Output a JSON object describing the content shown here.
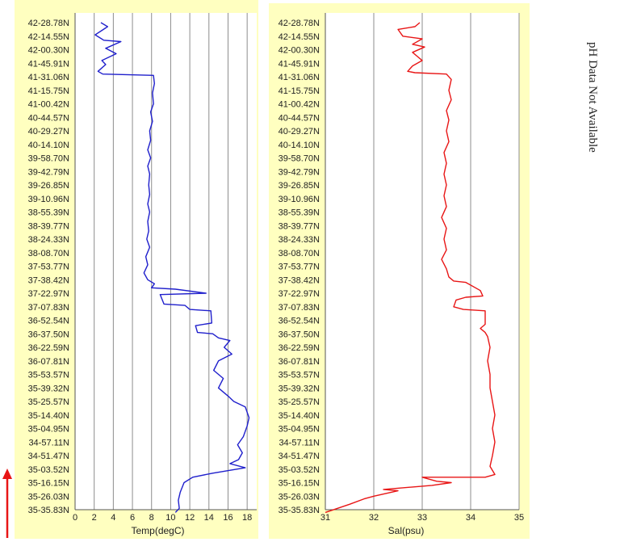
{
  "ph_note": "pH Data Not Available",
  "colors": {
    "panel_bg": "#ffffc0",
    "plot_bg": "#ffffff",
    "grid": "#8c8c8c",
    "temp_line": "#1f1fcc",
    "sal_line": "#e81515",
    "arrow": "#e81515"
  },
  "chart_data": [
    {
      "type": "line",
      "title": "",
      "xlabel": "Temp(degC)",
      "ylabel": "",
      "xlim": [
        0,
        19
      ],
      "xticks": [
        "0",
        "2",
        "4",
        "6",
        "8",
        "10",
        "12",
        "14",
        "16",
        "18"
      ],
      "grid": true,
      "y_categories": [
        "42-28.78N",
        "42-14.55N",
        "42-00.30N",
        "41-45.91N",
        "41-31.06N",
        "41-15.75N",
        "41-00.42N",
        "40-44.57N",
        "40-29.27N",
        "40-14.10N",
        "39-58.70N",
        "39-42.79N",
        "39-26.85N",
        "39-10.96N",
        "38-55.39N",
        "38-39.77N",
        "38-24.33N",
        "38-08.70N",
        "37-53.77N",
        "37-38.42N",
        "37-22.97N",
        "37-07.83N",
        "36-52.54N",
        "36-37.50N",
        "36-22.59N",
        "36-07.81N",
        "35-53.57N",
        "35-39.32N",
        "35-25.57N",
        "35-14.40N",
        "35-04.95N",
        "34-57.11N",
        "34-51.47N",
        "35-03.52N",
        "35-16.15N",
        "35-26.03N",
        "35-35.83N"
      ],
      "series": [
        {
          "values": [
            [
              2.7,
              0.0
            ],
            [
              3.4,
              0.3
            ],
            [
              2.1,
              0.9
            ],
            [
              3.0,
              1.3
            ],
            [
              4.8,
              1.4
            ],
            [
              3.2,
              1.9
            ],
            [
              4.3,
              2.3
            ],
            [
              2.8,
              2.8
            ],
            [
              3.2,
              3.1
            ],
            [
              2.4,
              3.6
            ],
            [
              2.9,
              3.8
            ],
            [
              8.2,
              3.9
            ],
            [
              8.3,
              4.5
            ],
            [
              8.1,
              5.2
            ],
            [
              8.2,
              6.0
            ],
            [
              7.9,
              6.6
            ],
            [
              8.1,
              7.3
            ],
            [
              7.8,
              8.0
            ],
            [
              7.9,
              8.7
            ],
            [
              7.6,
              9.4
            ],
            [
              7.9,
              10.0
            ],
            [
              7.6,
              10.6
            ],
            [
              7.8,
              11.2
            ],
            [
              7.7,
              12.0
            ],
            [
              7.8,
              12.7
            ],
            [
              7.6,
              13.4
            ],
            [
              7.8,
              14.0
            ],
            [
              7.6,
              14.7
            ],
            [
              7.7,
              15.4
            ],
            [
              7.5,
              16.0
            ],
            [
              7.8,
              16.6
            ],
            [
              7.4,
              17.3
            ],
            [
              7.6,
              17.9
            ],
            [
              7.2,
              18.5
            ],
            [
              7.6,
              19.0
            ],
            [
              8.3,
              19.3
            ],
            [
              8.0,
              19.6
            ],
            [
              10.5,
              19.7
            ],
            [
              13.7,
              20.0
            ],
            [
              8.9,
              20.1
            ],
            [
              9.3,
              20.8
            ],
            [
              11.5,
              20.9
            ],
            [
              12.0,
              21.2
            ],
            [
              14.2,
              21.3
            ],
            [
              14.3,
              22.2
            ],
            [
              12.6,
              22.4
            ],
            [
              12.8,
              22.9
            ],
            [
              14.4,
              23.0
            ],
            [
              15.0,
              23.3
            ],
            [
              16.2,
              23.5
            ],
            [
              15.6,
              24.0
            ],
            [
              16.4,
              24.5
            ],
            [
              15.0,
              25.0
            ],
            [
              14.5,
              25.7
            ],
            [
              15.5,
              26.3
            ],
            [
              15.0,
              27.0
            ],
            [
              16.0,
              27.6
            ],
            [
              16.6,
              28.0
            ],
            [
              17.8,
              28.4
            ],
            [
              18.2,
              29.2
            ],
            [
              18.0,
              29.8
            ],
            [
              17.6,
              30.6
            ],
            [
              17.0,
              31.2
            ],
            [
              17.5,
              31.8
            ],
            [
              17.1,
              32.3
            ],
            [
              16.2,
              32.6
            ],
            [
              17.8,
              32.9
            ],
            [
              14.4,
              33.3
            ],
            [
              12.3,
              33.6
            ],
            [
              11.4,
              34.0
            ],
            [
              11.0,
              34.7
            ],
            [
              10.8,
              35.3
            ],
            [
              10.9,
              35.9
            ],
            [
              10.5,
              36.2
            ]
          ]
        }
      ]
    },
    {
      "type": "line",
      "title": "",
      "xlabel": "Sal(psu)",
      "ylabel": "",
      "xlim": [
        31,
        35
      ],
      "xticks": [
        "31",
        "32",
        "33",
        "34",
        "35"
      ],
      "grid": true,
      "y_categories": [
        "42-28.78N",
        "42-14.55N",
        "42-00.30N",
        "41-45.91N",
        "41-31.06N",
        "41-15.75N",
        "41-00.42N",
        "40-44.57N",
        "40-29.27N",
        "40-14.10N",
        "39-58.70N",
        "39-42.79N",
        "39-26.85N",
        "39-10.96N",
        "38-55.39N",
        "38-39.77N",
        "38-24.33N",
        "38-08.70N",
        "37-53.77N",
        "37-38.42N",
        "37-22.97N",
        "37-07.83N",
        "36-52.54N",
        "36-37.50N",
        "36-22.59N",
        "36-07.81N",
        "35-53.57N",
        "35-39.32N",
        "35-25.57N",
        "35-14.40N",
        "35-04.95N",
        "34-57.11N",
        "34-51.47N",
        "35-03.52N",
        "35-16.15N",
        "35-26.03N",
        "35-35.83N"
      ],
      "series": [
        {
          "values": [
            [
              32.95,
              0.0
            ],
            [
              32.85,
              0.3
            ],
            [
              32.5,
              0.5
            ],
            [
              32.6,
              1.0
            ],
            [
              33.0,
              1.2
            ],
            [
              32.8,
              1.6
            ],
            [
              33.05,
              1.8
            ],
            [
              32.8,
              2.2
            ],
            [
              32.9,
              2.5
            ],
            [
              33.0,
              2.8
            ],
            [
              32.8,
              3.2
            ],
            [
              32.7,
              3.6
            ],
            [
              32.85,
              3.7
            ],
            [
              33.5,
              3.8
            ],
            [
              33.6,
              4.2
            ],
            [
              33.55,
              5.0
            ],
            [
              33.6,
              5.7
            ],
            [
              33.5,
              6.5
            ],
            [
              33.55,
              7.2
            ],
            [
              33.5,
              8.0
            ],
            [
              33.55,
              8.8
            ],
            [
              33.45,
              9.6
            ],
            [
              33.5,
              10.4
            ],
            [
              33.45,
              11.2
            ],
            [
              33.5,
              12.0
            ],
            [
              33.45,
              12.8
            ],
            [
              33.5,
              13.6
            ],
            [
              33.4,
              14.4
            ],
            [
              33.5,
              15.2
            ],
            [
              33.45,
              16.0
            ],
            [
              33.5,
              16.8
            ],
            [
              33.4,
              17.5
            ],
            [
              33.5,
              18.2
            ],
            [
              33.55,
              18.8
            ],
            [
              33.65,
              19.1
            ],
            [
              33.9,
              19.2
            ],
            [
              34.2,
              19.8
            ],
            [
              34.25,
              20.2
            ],
            [
              33.9,
              20.3
            ],
            [
              33.7,
              20.5
            ],
            [
              33.65,
              21.0
            ],
            [
              33.85,
              21.2
            ],
            [
              34.3,
              21.3
            ],
            [
              34.3,
              22.3
            ],
            [
              34.2,
              22.6
            ],
            [
              34.3,
              22.9
            ],
            [
              34.35,
              23.2
            ],
            [
              34.4,
              24.0
            ],
            [
              34.35,
              25.0
            ],
            [
              34.4,
              26.0
            ],
            [
              34.4,
              27.0
            ],
            [
              34.45,
              28.0
            ],
            [
              34.5,
              29.0
            ],
            [
              34.45,
              30.0
            ],
            [
              34.5,
              31.0
            ],
            [
              34.45,
              32.0
            ],
            [
              34.4,
              32.8
            ],
            [
              34.5,
              33.4
            ],
            [
              34.3,
              33.6
            ],
            [
              33.0,
              33.6
            ],
            [
              33.3,
              33.9
            ],
            [
              33.6,
              34.0
            ],
            [
              33.2,
              34.2
            ],
            [
              32.2,
              34.5
            ],
            [
              32.5,
              34.6
            ],
            [
              32.0,
              35.0
            ],
            [
              31.8,
              35.2
            ],
            [
              31.5,
              35.6
            ],
            [
              31.0,
              36.2
            ]
          ]
        }
      ]
    }
  ]
}
